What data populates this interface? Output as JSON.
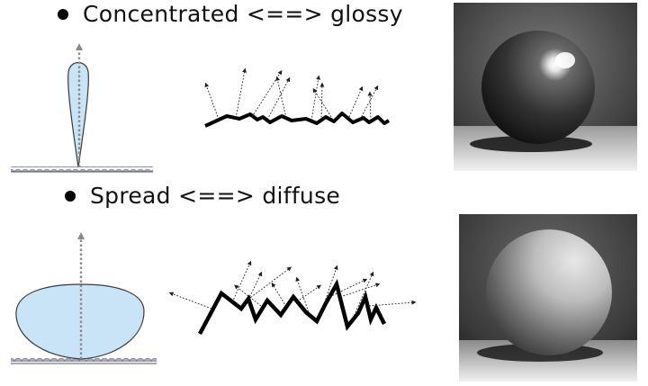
{
  "bullets": [
    {
      "text": "Concentrated <==> glossy"
    },
    {
      "text": "Spread <==> diffuse"
    }
  ],
  "colors": {
    "lobe_fill": "#c9e3f7",
    "lobe_stroke": "#3a3a3a",
    "surface_bump": "#a8a8c6",
    "arrow_gray": "#8a8a8a"
  }
}
